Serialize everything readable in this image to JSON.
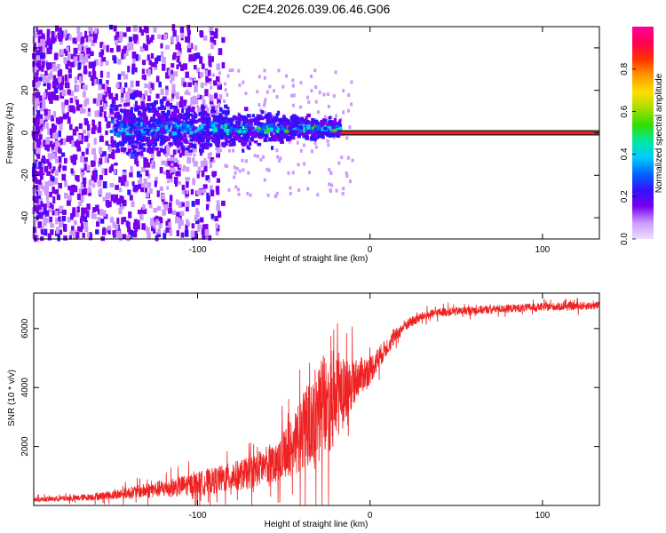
{
  "title": "C2E4.2026.039.06.46.G06",
  "colors": {
    "snr_line": "#ee2222",
    "band_center": "#ff1a1a",
    "band_edge": "#222222",
    "colorbar": [
      "#eeddff",
      "#cc99ff",
      "#7700ee",
      "#3311ff",
      "#0066ff",
      "#00ccff",
      "#00e8a0",
      "#33dd00",
      "#aadd00",
      "#ffdd00",
      "#ff9900",
      "#ff3300",
      "#ff0055",
      "#ff0099"
    ]
  },
  "chart_data": [
    {
      "type": "heatmap",
      "xlabel": "Height of straight line (km)",
      "ylabel": "Frequency (Hz)",
      "xlim": [
        -195,
        133
      ],
      "ylim": [
        -50,
        50
      ],
      "xticks": [
        -100,
        0,
        100
      ],
      "xtick_labels": [
        "-100",
        "0",
        "100"
      ],
      "yticks": [
        -40,
        -20,
        0,
        20,
        40
      ],
      "ytick_labels": [
        "-40",
        "-20",
        "0",
        "20",
        "40"
      ],
      "description_values": {
        "noise_region_x": [
          -195,
          -120
        ],
        "scatter_cluster_x": [
          -150,
          -17
        ],
        "scatter_cluster_freq_range": [
          -10,
          12
        ],
        "tracking_start_x": -17,
        "tracking_freq": 0
      },
      "colorbar": {
        "label": "Normalized spectral amplitude",
        "range": [
          0.0,
          1.0
        ],
        "ticks": [
          0.0,
          0.2,
          0.4,
          0.6,
          0.8
        ],
        "tick_labels": [
          "0.0",
          "0.2",
          "0.4",
          "0.6",
          "0.8"
        ]
      }
    },
    {
      "type": "line",
      "xlabel": "Height of straight line (km)",
      "ylabel": "SNR (10 * v/v)",
      "xlim": [
        -195,
        133
      ],
      "ylim": [
        0,
        7200
      ],
      "xticks": [
        -100,
        0,
        100
      ],
      "xtick_labels": [
        "-100",
        "0",
        "100"
      ],
      "yticks": [
        2000,
        4000,
        6000
      ],
      "ytick_labels": [
        "2000",
        "4000",
        "6000"
      ],
      "envelope_x": [
        -195,
        -170,
        -150,
        -130,
        -110,
        -90,
        -70,
        -55,
        -45,
        -35,
        -28,
        -22,
        -15,
        -8,
        0,
        10,
        20,
        30,
        40,
        60,
        80,
        100,
        133
      ],
      "envelope_y": [
        200,
        250,
        350,
        500,
        650,
        850,
        1100,
        1500,
        2000,
        2800,
        3300,
        3600,
        3900,
        4300,
        4600,
        5400,
        6100,
        6400,
        6550,
        6620,
        6680,
        6730,
        6780
      ],
      "noise_amplitude": [
        80,
        100,
        150,
        250,
        350,
        450,
        550,
        700,
        1000,
        1500,
        1800,
        1700,
        1200,
        700,
        500,
        300,
        200,
        160,
        150,
        140,
        140,
        140,
        140
      ]
    }
  ]
}
